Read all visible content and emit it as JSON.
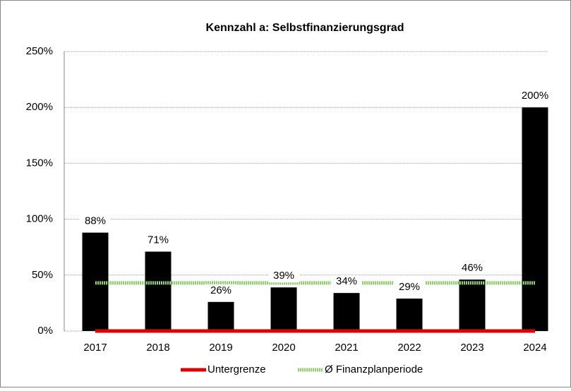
{
  "chart_data": {
    "type": "bar",
    "title": "Kennzahl a: Selbstfinanzierungsgrad",
    "categories": [
      "2017",
      "2018",
      "2019",
      "2020",
      "2021",
      "2022",
      "2023",
      "2024"
    ],
    "values": [
      88,
      71,
      26,
      39,
      34,
      29,
      46,
      200
    ],
    "value_labels": [
      "88%",
      "71%",
      "26%",
      "39%",
      "34%",
      "29%",
      "46%",
      "200%"
    ],
    "color": "#000000",
    "lines": [
      {
        "name": "Untergrenze",
        "color": "#e00000",
        "style": "solid",
        "values": [
          0,
          0,
          0,
          0,
          0,
          0,
          0,
          0
        ]
      },
      {
        "name": "Ø Finanzplanperiode",
        "color": "#8fd16a",
        "style": "dotted",
        "values": [
          43,
          43,
          43,
          43,
          43,
          43,
          43,
          43
        ]
      }
    ],
    "ylim": [
      0,
      250
    ],
    "yticks": [
      {
        "value": 0,
        "label": "0%"
      },
      {
        "value": 50,
        "label": "50%"
      },
      {
        "value": 100,
        "label": "100%"
      },
      {
        "value": 150,
        "label": "150%"
      },
      {
        "value": 200,
        "label": "200%"
      },
      {
        "value": 250,
        "label": "250%"
      }
    ],
    "grid": true,
    "legend": "bottom"
  }
}
